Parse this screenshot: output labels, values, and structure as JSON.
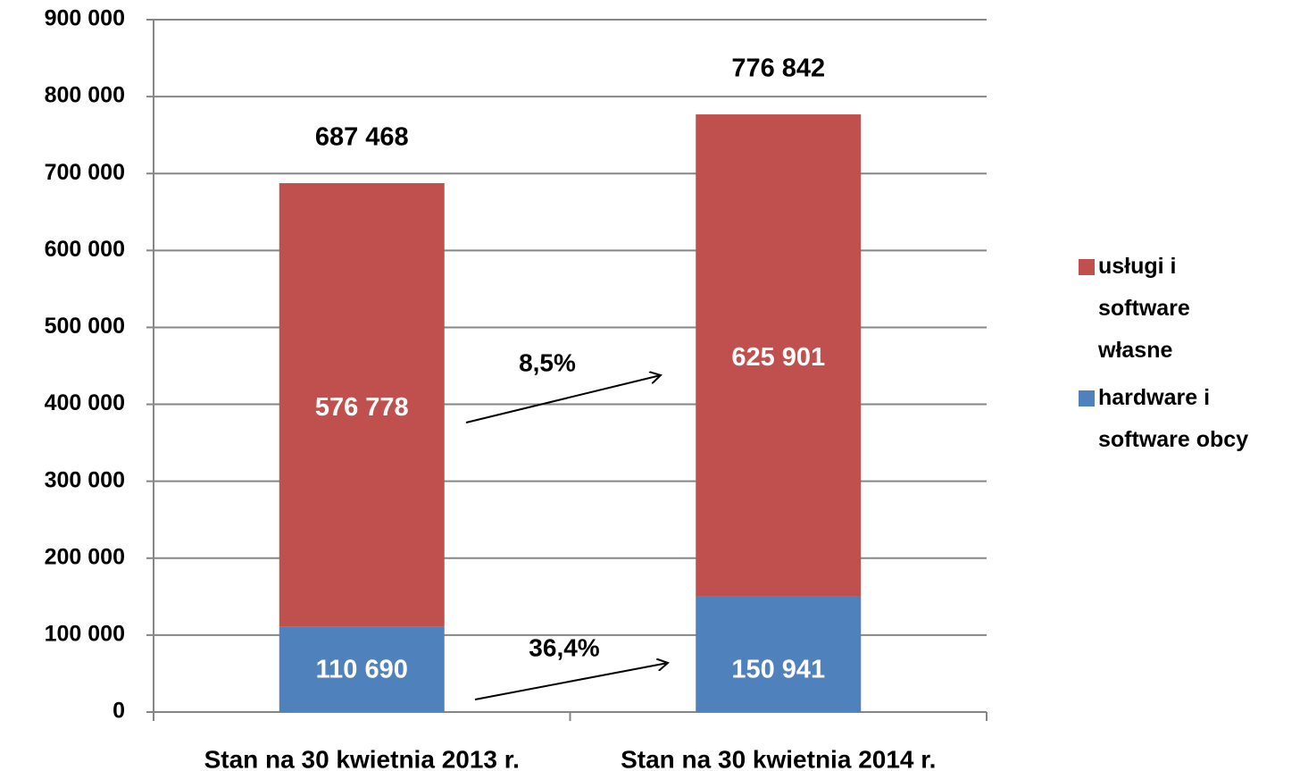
{
  "chart_data": {
    "type": "stacked_bar",
    "categories": [
      "Stan na 30 kwietnia 2013 r.",
      "Stan na 30 kwietnia 2014 r."
    ],
    "series": [
      {
        "name": "hardware i software obcy",
        "color": "#4f81bd",
        "values": [
          110690,
          150941
        ],
        "value_labels": [
          "110 690",
          "150 941"
        ]
      },
      {
        "name": "usługi i software własne",
        "color": "#c0504d",
        "values": [
          576778,
          625901
        ],
        "value_labels": [
          "576 778",
          "625 901"
        ]
      }
    ],
    "totals": [
      687468,
      776842
    ],
    "total_labels": [
      "687 468",
      "776 842"
    ],
    "annotations": [
      "8,5%",
      "36,4%"
    ],
    "ylim": [
      0,
      900000
    ],
    "yticks": [
      0,
      {
        "value": 100000,
        "label": "100 000"
      },
      {
        "value": 200000,
        "label": "200 000"
      },
      {
        "value": 300000,
        "label": "300 000"
      },
      {
        "value": 400000,
        "label": "400 000"
      },
      {
        "value": 500000,
        "label": "500 000"
      },
      {
        "value": 600000,
        "label": "600 000"
      },
      {
        "value": 700000,
        "label": "700 000"
      },
      {
        "value": 800000,
        "label": "800 000"
      },
      {
        "value": 900000,
        "label": "900 000"
      }
    ],
    "grid": true,
    "legend": "right"
  }
}
